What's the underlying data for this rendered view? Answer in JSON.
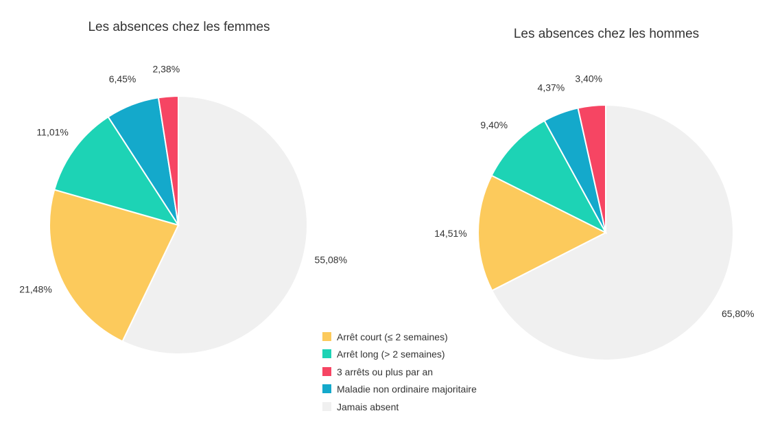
{
  "chart_data": [
    {
      "type": "pie",
      "title": "Les absences chez les femmes",
      "categories": [
        "Jamais absent",
        "Arrêt court (≤ 2 semaines)",
        "Arrêt long (> 2 semaines)",
        "Maladie non ordinaire majoritaire",
        "3 arrêts ou plus par an"
      ],
      "values": [
        55.08,
        21.48,
        11.01,
        6.45,
        2.38
      ],
      "labels": [
        "55,08%",
        "21,48%",
        "11,01%",
        "6,45%",
        "2,38%"
      ],
      "colors": [
        "#F0F0F0",
        "#FCCA5C",
        "#1DD3B5",
        "#14A9CB",
        "#F64563"
      ]
    },
    {
      "type": "pie",
      "title": "Les absences chez les hommes",
      "categories": [
        "Jamais absent",
        "Arrêt court (≤ 2 semaines)",
        "Arrêt long (> 2 semaines)",
        "Maladie non ordinaire majoritaire",
        "3 arrêts ou plus par an"
      ],
      "values": [
        65.8,
        14.51,
        9.4,
        4.37,
        3.4
      ],
      "labels": [
        "65,80%",
        "14,51%",
        "9,40%",
        "4,37%",
        "3,40%"
      ],
      "colors": [
        "#F0F0F0",
        "#FCCA5C",
        "#1DD3B5",
        "#14A9CB",
        "#F64563"
      ]
    }
  ],
  "legend": {
    "placement": "bottom-center",
    "items": [
      {
        "label": "Arrêt court (≤ 2 semaines)",
        "color": "#FCCA5C"
      },
      {
        "label": "Arrêt long (> 2 semaines)",
        "color": "#1DD3B5"
      },
      {
        "label": "3 arrêts ou plus par an",
        "color": "#F64563"
      },
      {
        "label": "Maladie non ordinaire majoritaire",
        "color": "#14A9CB"
      },
      {
        "label": "Jamais absent",
        "color": "#F0F0F0"
      }
    ]
  }
}
